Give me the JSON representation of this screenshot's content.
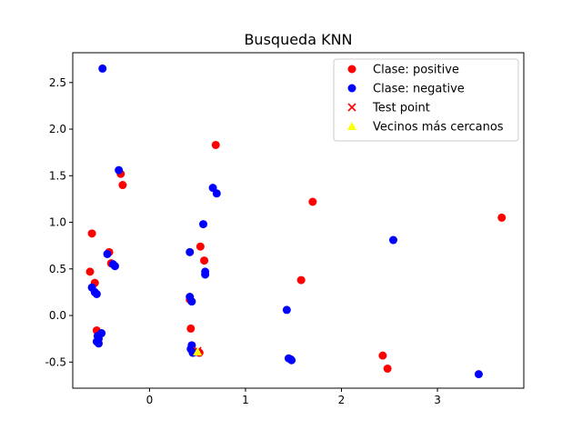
{
  "chart_data": {
    "type": "scatter",
    "title": "Busqueda KNN",
    "xlabel": "",
    "ylabel": "",
    "xlim": [
      -0.8,
      3.9
    ],
    "ylim": [
      -0.78,
      2.82
    ],
    "x_ticks": [
      0,
      1,
      2,
      3
    ],
    "y_ticks": [
      -0.5,
      0.0,
      0.5,
      1.0,
      1.5,
      2.0,
      2.5
    ],
    "grid": false,
    "legend_position": "top-right",
    "series": [
      {
        "name": "Clase: positive",
        "marker": "circle",
        "color": "#ff0000",
        "points": [
          [
            -0.6,
            0.88
          ],
          [
            -0.62,
            0.47
          ],
          [
            -0.57,
            0.35
          ],
          [
            -0.55,
            -0.16
          ],
          [
            -0.42,
            0.68
          ],
          [
            -0.4,
            0.56
          ],
          [
            -0.3,
            1.52
          ],
          [
            -0.28,
            1.4
          ],
          [
            0.42,
            0.17
          ],
          [
            0.43,
            -0.14
          ],
          [
            0.53,
            0.74
          ],
          [
            0.57,
            0.59
          ],
          [
            0.69,
            1.83
          ],
          [
            0.52,
            -0.4
          ],
          [
            1.7,
            1.22
          ],
          [
            1.58,
            0.38
          ],
          [
            2.43,
            -0.43
          ],
          [
            2.48,
            -0.57
          ],
          [
            3.67,
            1.05
          ]
        ]
      },
      {
        "name": "Clase: negative",
        "marker": "circle",
        "color": "#0000ff",
        "points": [
          [
            -0.49,
            2.65
          ],
          [
            -0.32,
            1.56
          ],
          [
            -0.44,
            0.66
          ],
          [
            -0.38,
            0.55
          ],
          [
            -0.36,
            0.53
          ],
          [
            -0.6,
            0.3
          ],
          [
            -0.57,
            0.25
          ],
          [
            -0.55,
            0.23
          ],
          [
            -0.54,
            -0.22
          ],
          [
            -0.53,
            -0.25
          ],
          [
            -0.55,
            -0.28
          ],
          [
            -0.53,
            -0.3
          ],
          [
            -0.5,
            -0.19
          ],
          [
            0.42,
            0.68
          ],
          [
            0.42,
            0.2
          ],
          [
            0.44,
            0.15
          ],
          [
            0.56,
            0.98
          ],
          [
            0.58,
            0.47
          ],
          [
            0.58,
            0.44
          ],
          [
            0.66,
            1.37
          ],
          [
            0.7,
            1.31
          ],
          [
            0.44,
            -0.32
          ],
          [
            0.43,
            -0.36
          ],
          [
            0.45,
            -0.4
          ],
          [
            0.48,
            -0.39
          ],
          [
            1.43,
            0.06
          ],
          [
            1.45,
            -0.46
          ],
          [
            1.47,
            -0.47
          ],
          [
            1.48,
            -0.48
          ],
          [
            2.54,
            0.81
          ],
          [
            3.43,
            -0.63
          ]
        ]
      },
      {
        "name": "Test point",
        "marker": "x",
        "color": "#ff0000",
        "points": [
          [
            0.5,
            -0.38
          ]
        ]
      },
      {
        "name": "Vecinos más cercanos",
        "marker": "triangle",
        "color": "#ffff00",
        "points": [
          [
            0.5,
            -0.39
          ]
        ]
      }
    ]
  }
}
